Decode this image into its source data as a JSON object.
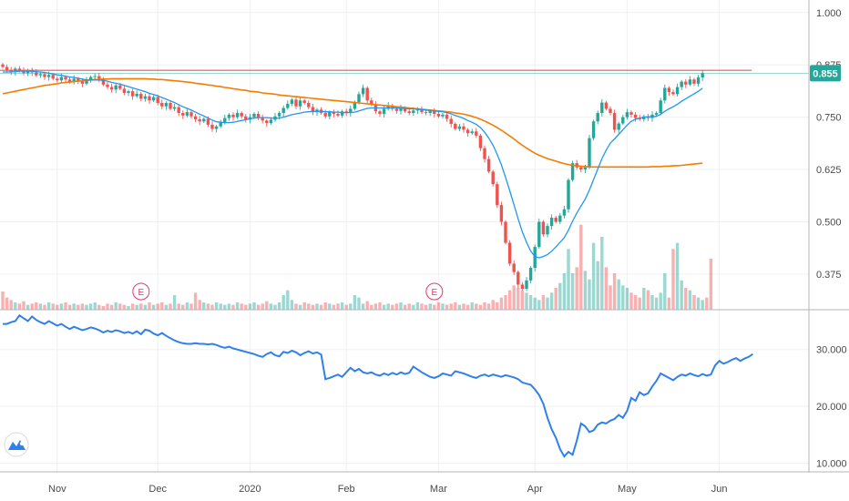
{
  "chart_data": [
    {
      "type": "candlestick",
      "ylim": [
        0.29,
        1.03
      ],
      "y_ticks": [
        "1.000",
        "0.875",
        "0.750",
        "0.625",
        "0.500",
        "0.375"
      ],
      "y_tick_values": [
        1.0,
        0.875,
        0.75,
        0.625,
        0.5,
        0.375
      ],
      "last_price_label": "0.855",
      "last_price": 0.855,
      "resistance_level": 0.862,
      "earnings_markers": [
        "E",
        "E"
      ],
      "colors": {
        "up": "#26a69a",
        "down": "#ef5350",
        "fast_ma": "#2196f3",
        "slow_ma": "#f57c00",
        "resistance": "#ef5350",
        "badge": "#26a69a"
      },
      "candle_closes": [
        0.87,
        0.862,
        0.858,
        0.866,
        0.861,
        0.855,
        0.862,
        0.857,
        0.85,
        0.853,
        0.846,
        0.851,
        0.842,
        0.838,
        0.846,
        0.84,
        0.834,
        0.842,
        0.836,
        0.83,
        0.838,
        0.846,
        0.848,
        0.842,
        0.828,
        0.822,
        0.816,
        0.826,
        0.818,
        0.808,
        0.812,
        0.8,
        0.806,
        0.794,
        0.8,
        0.79,
        0.798,
        0.784,
        0.776,
        0.784,
        0.77,
        0.774,
        0.76,
        0.754,
        0.762,
        0.752,
        0.745,
        0.74,
        0.746,
        0.732,
        0.722,
        0.728,
        0.738,
        0.748,
        0.756,
        0.75,
        0.76,
        0.752,
        0.744,
        0.75,
        0.758,
        0.748,
        0.742,
        0.736,
        0.744,
        0.752,
        0.76,
        0.772,
        0.782,
        0.792,
        0.776,
        0.79,
        0.784,
        0.774,
        0.762,
        0.768,
        0.76,
        0.752,
        0.762,
        0.758,
        0.754,
        0.764,
        0.76,
        0.77,
        0.786,
        0.805,
        0.82,
        0.79,
        0.78,
        0.764,
        0.758,
        0.77,
        0.778,
        0.77,
        0.765,
        0.772,
        0.764,
        0.76,
        0.766,
        0.77,
        0.762,
        0.76,
        0.765,
        0.758,
        0.752,
        0.756,
        0.746,
        0.734,
        0.722,
        0.728,
        0.72,
        0.712,
        0.716,
        0.706,
        0.676,
        0.65,
        0.62,
        0.59,
        0.54,
        0.5,
        0.45,
        0.4,
        0.38,
        0.35,
        0.34,
        0.36,
        0.39,
        0.44,
        0.5,
        0.47,
        0.49,
        0.51,
        0.5,
        0.515,
        0.53,
        0.6,
        0.64,
        0.63,
        0.625,
        0.63,
        0.7,
        0.74,
        0.76,
        0.785,
        0.77,
        0.76,
        0.72,
        0.735,
        0.75,
        0.762,
        0.756,
        0.748,
        0.745,
        0.752,
        0.748,
        0.756,
        0.76,
        0.79,
        0.82,
        0.81,
        0.805,
        0.822,
        0.835,
        0.828,
        0.84,
        0.83,
        0.845,
        0.855
      ],
      "fast_ma": [
        0.858,
        0.858,
        0.858,
        0.859,
        0.86,
        0.86,
        0.86,
        0.86,
        0.859,
        0.858,
        0.857,
        0.855,
        0.853,
        0.851,
        0.85,
        0.848,
        0.846,
        0.845,
        0.843,
        0.841,
        0.839,
        0.839,
        0.839,
        0.839,
        0.838,
        0.836,
        0.833,
        0.831,
        0.829,
        0.826,
        0.823,
        0.82,
        0.817,
        0.814,
        0.811,
        0.807,
        0.804,
        0.801,
        0.797,
        0.793,
        0.789,
        0.785,
        0.78,
        0.775,
        0.771,
        0.767,
        0.762,
        0.757,
        0.753,
        0.748,
        0.743,
        0.739,
        0.738,
        0.737,
        0.737,
        0.738,
        0.74,
        0.742,
        0.744,
        0.746,
        0.748,
        0.749,
        0.749,
        0.749,
        0.748,
        0.747,
        0.748,
        0.75,
        0.753,
        0.756,
        0.758,
        0.76,
        0.762,
        0.763,
        0.764,
        0.764,
        0.764,
        0.763,
        0.763,
        0.762,
        0.762,
        0.761,
        0.761,
        0.761,
        0.762,
        0.765,
        0.768,
        0.771,
        0.772,
        0.772,
        0.772,
        0.772,
        0.772,
        0.772,
        0.772,
        0.771,
        0.771,
        0.77,
        0.77,
        0.769,
        0.768,
        0.767,
        0.766,
        0.765,
        0.764,
        0.763,
        0.761,
        0.758,
        0.754,
        0.751,
        0.747,
        0.742,
        0.738,
        0.733,
        0.725,
        0.714,
        0.7,
        0.683,
        0.661,
        0.636,
        0.606,
        0.574,
        0.541,
        0.507,
        0.476,
        0.451,
        0.43,
        0.417,
        0.414,
        0.417,
        0.422,
        0.43,
        0.44,
        0.451,
        0.462,
        0.48,
        0.502,
        0.521,
        0.538,
        0.554,
        0.576,
        0.601,
        0.626,
        0.651,
        0.671,
        0.688,
        0.698,
        0.709,
        0.72,
        0.731,
        0.74,
        0.745,
        0.748,
        0.75,
        0.751,
        0.751,
        0.752,
        0.757,
        0.764,
        0.77,
        0.775,
        0.781,
        0.788,
        0.794,
        0.8,
        0.806,
        0.812,
        0.819
      ],
      "slow_ma": [
        0.806,
        0.808,
        0.81,
        0.812,
        0.814,
        0.816,
        0.818,
        0.82,
        0.822,
        0.824,
        0.826,
        0.827,
        0.829,
        0.83,
        0.832,
        0.833,
        0.834,
        0.835,
        0.836,
        0.837,
        0.838,
        0.839,
        0.84,
        0.84,
        0.841,
        0.841,
        0.842,
        0.842,
        0.842,
        0.842,
        0.842,
        0.842,
        0.842,
        0.842,
        0.842,
        0.841,
        0.841,
        0.84,
        0.84,
        0.839,
        0.838,
        0.837,
        0.836,
        0.835,
        0.834,
        0.833,
        0.831,
        0.83,
        0.829,
        0.827,
        0.826,
        0.824,
        0.823,
        0.821,
        0.82,
        0.818,
        0.817,
        0.815,
        0.814,
        0.812,
        0.811,
        0.81,
        0.808,
        0.807,
        0.806,
        0.805,
        0.803,
        0.802,
        0.801,
        0.8,
        0.799,
        0.798,
        0.797,
        0.796,
        0.795,
        0.794,
        0.793,
        0.792,
        0.791,
        0.79,
        0.789,
        0.788,
        0.787,
        0.786,
        0.785,
        0.784,
        0.783,
        0.782,
        0.781,
        0.78,
        0.779,
        0.778,
        0.777,
        0.776,
        0.775,
        0.774,
        0.773,
        0.772,
        0.771,
        0.77,
        0.769,
        0.768,
        0.767,
        0.766,
        0.765,
        0.764,
        0.763,
        0.762,
        0.76,
        0.759,
        0.757,
        0.755,
        0.752,
        0.749,
        0.745,
        0.741,
        0.736,
        0.731,
        0.725,
        0.719,
        0.712,
        0.705,
        0.698,
        0.69,
        0.683,
        0.676,
        0.67,
        0.664,
        0.659,
        0.655,
        0.651,
        0.648,
        0.645,
        0.642,
        0.639,
        0.637,
        0.635,
        0.634,
        0.633,
        0.632,
        0.631,
        0.631,
        0.631,
        0.631,
        0.631,
        0.631,
        0.631,
        0.631,
        0.631,
        0.631,
        0.631,
        0.631,
        0.631,
        0.631,
        0.631,
        0.632,
        0.632,
        0.632,
        0.633,
        0.633,
        0.634,
        0.634,
        0.635,
        0.636,
        0.637,
        0.638,
        0.639,
        0.64
      ],
      "volume": [
        0.15,
        0.1,
        0.08,
        0.06,
        0.05,
        0.07,
        0.04,
        0.05,
        0.06,
        0.05,
        0.04,
        0.06,
        0.05,
        0.04,
        0.05,
        0.06,
        0.04,
        0.05,
        0.04,
        0.05,
        0.04,
        0.05,
        0.06,
        0.04,
        0.03,
        0.05,
        0.04,
        0.06,
        0.05,
        0.04,
        0.03,
        0.05,
        0.04,
        0.05,
        0.04,
        0.06,
        0.04,
        0.05,
        0.06,
        0.04,
        0.05,
        0.12,
        0.05,
        0.04,
        0.06,
        0.05,
        0.14,
        0.08,
        0.06,
        0.05,
        0.04,
        0.06,
        0.05,
        0.04,
        0.05,
        0.04,
        0.06,
        0.05,
        0.04,
        0.05,
        0.06,
        0.04,
        0.05,
        0.07,
        0.05,
        0.04,
        0.06,
        0.12,
        0.16,
        0.08,
        0.05,
        0.04,
        0.06,
        0.05,
        0.04,
        0.05,
        0.04,
        0.06,
        0.05,
        0.04,
        0.05,
        0.06,
        0.04,
        0.05,
        0.12,
        0.1,
        0.05,
        0.07,
        0.04,
        0.05,
        0.06,
        0.04,
        0.05,
        0.04,
        0.05,
        0.06,
        0.04,
        0.05,
        0.04,
        0.06,
        0.05,
        0.04,
        0.05,
        0.04,
        0.06,
        0.05,
        0.04,
        0.05,
        0.06,
        0.04,
        0.05,
        0.04,
        0.06,
        0.05,
        0.04,
        0.06,
        0.05,
        0.08,
        0.06,
        0.1,
        0.12,
        0.16,
        0.2,
        0.18,
        0.16,
        0.14,
        0.12,
        0.1,
        0.08,
        0.12,
        0.1,
        0.14,
        0.18,
        0.22,
        0.3,
        0.5,
        0.3,
        0.35,
        0.7,
        0.32,
        0.25,
        0.55,
        0.4,
        0.6,
        0.35,
        0.2,
        0.3,
        0.25,
        0.2,
        0.18,
        0.14,
        0.12,
        0.1,
        0.18,
        0.16,
        0.12,
        0.1,
        0.14,
        0.3,
        0.1,
        0.5,
        0.55,
        0.24,
        0.18,
        0.16,
        0.12,
        0.1,
        0.08,
        0.1,
        0.42
      ],
      "x_ticks": [
        "Nov",
        "Dec",
        "2020",
        "Feb",
        "Mar",
        "Apr",
        "May",
        "Jun"
      ]
    },
    {
      "type": "line",
      "ylim": [
        8.5,
        37
      ],
      "y_ticks": [
        "30.000",
        "20.000",
        "10.000"
      ],
      "y_tick_values": [
        30,
        20,
        10
      ],
      "color": "#2f80ed",
      "values": [
        34.5,
        34.5,
        34.8,
        35.0,
        36.0,
        35.5,
        35.0,
        35.8,
        35.2,
        34.8,
        34.5,
        35.0,
        34.6,
        34.2,
        34.5,
        34.0,
        33.6,
        34.0,
        33.7,
        33.4,
        33.6,
        33.9,
        33.7,
        33.4,
        33.0,
        33.3,
        33.1,
        33.4,
        33.2,
        32.9,
        33.1,
        32.8,
        33.2,
        32.7,
        33.5,
        33.3,
        32.8,
        32.5,
        32.9,
        32.4,
        32.0,
        31.6,
        31.3,
        31.1,
        31.0,
        31.0,
        31.1,
        31.0,
        31.0,
        30.9,
        31.0,
        30.8,
        30.5,
        30.3,
        30.5,
        30.2,
        30.0,
        29.8,
        29.6,
        29.4,
        29.2,
        28.9,
        28.7,
        29.2,
        29.5,
        29.0,
        28.8,
        29.6,
        29.4,
        29.8,
        29.5,
        29.0,
        29.4,
        29.7,
        29.3,
        29.5,
        29.1,
        24.8,
        25.0,
        25.3,
        25.6,
        25.2,
        26.0,
        26.8,
        26.2,
        26.6,
        26.0,
        25.8,
        26.0,
        25.6,
        25.4,
        25.8,
        25.5,
        25.9,
        25.6,
        26.0,
        25.7,
        25.9,
        27.0,
        26.5,
        26.0,
        25.6,
        25.2,
        25.0,
        25.3,
        25.8,
        25.6,
        25.4,
        26.2,
        26.0,
        25.8,
        25.5,
        25.2,
        25.0,
        25.4,
        25.6,
        25.3,
        25.6,
        25.4,
        25.2,
        25.5,
        25.3,
        25.1,
        24.8,
        24.2,
        24.0,
        23.8,
        23.0,
        22.0,
        20.5,
        18.0,
        16.0,
        14.5,
        12.5,
        11.2,
        12.0,
        11.5,
        14.0,
        17.0,
        16.5,
        15.5,
        15.8,
        16.8,
        17.2,
        17.0,
        17.5,
        17.8,
        18.5,
        18.0,
        19.2,
        21.5,
        21.0,
        22.5,
        22.0,
        22.3,
        23.5,
        24.5,
        25.8,
        25.4,
        25.0,
        24.6,
        25.2,
        25.6,
        25.4,
        25.8,
        25.5,
        25.3,
        25.7,
        25.4,
        25.6,
        27.2,
        28.0,
        27.5,
        27.8,
        28.2,
        28.5,
        28.0,
        28.4,
        28.7,
        29.2
      ]
    }
  ]
}
